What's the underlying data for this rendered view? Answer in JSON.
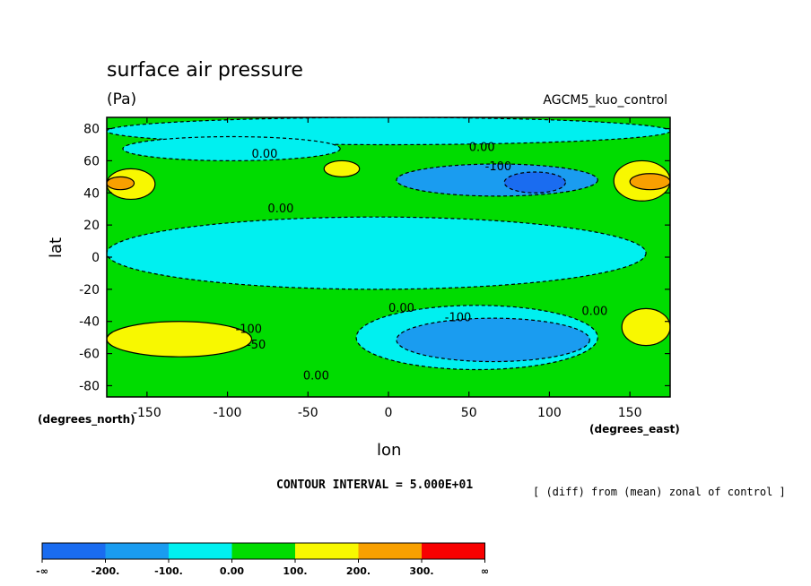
{
  "title": "surface air pressure",
  "units": "(Pa)",
  "run_name": "AGCM5_kuo_control",
  "lat_unit": "(degrees_north)",
  "lon_unit": "(degrees_east)",
  "xlabel": "lon",
  "ylabel": "lat",
  "contour_interval": "CONTOUR INTERVAL = 5.000E+01",
  "note": "[ (diff) from (mean) zonal of control ]",
  "colorbar": {
    "colors": [
      "#1a6cf0",
      "#1a9cf0",
      "#00f0f0",
      "#00dc00",
      "#f8f800",
      "#f8a000",
      "#f80000"
    ],
    "labels": [
      "-∞",
      "-200.",
      "-100.",
      "0.00",
      "100.",
      "200.",
      "300.",
      "∞"
    ]
  },
  "chart_data": {
    "type": "heatmap",
    "title": "surface air pressure",
    "xlabel": "lon",
    "ylabel": "lat",
    "xlim": [
      -175,
      175
    ],
    "ylim": [
      -87,
      87
    ],
    "xticks": [
      -150,
      -100,
      -50,
      0,
      50,
      100,
      150
    ],
    "yticks": [
      -80,
      -60,
      -40,
      -20,
      0,
      20,
      40,
      60,
      80
    ],
    "contour_levels": [
      -200,
      -150,
      -100,
      -50,
      0,
      50,
      100,
      150,
      200,
      250
    ],
    "contour_labels": [
      {
        "text": "0.00",
        "lon": -85,
        "lat": 62
      },
      {
        "text": "0.00",
        "lon": -75,
        "lat": 28
      },
      {
        "text": "0.00",
        "lon": 50,
        "lat": 66
      },
      {
        "text": "-100",
        "lon": 60,
        "lat": 54
      },
      {
        "text": "0.00",
        "lon": 0,
        "lat": -34
      },
      {
        "text": "-100",
        "lon": 35,
        "lat": -40
      },
      {
        "text": "0.00",
        "lon": 120,
        "lat": -36
      },
      {
        "text": "-100",
        "lon": -95,
        "lat": -47
      },
      {
        "text": "-50",
        "lon": -88,
        "lat": -57
      },
      {
        "text": "0.00",
        "lon": -53,
        "lat": -76
      }
    ],
    "regions": [
      {
        "level": 0,
        "name": "positive background",
        "lon": [
          -175,
          175
        ],
        "lat": [
          -87,
          87
        ]
      },
      {
        "level": -1,
        "name": "north polar negative",
        "lon": [
          -175,
          175
        ],
        "lat": [
          70,
          87
        ]
      },
      {
        "level": -1,
        "name": "north pacific negative",
        "lon": [
          -165,
          -30
        ],
        "lat": [
          60,
          75
        ]
      },
      {
        "level": -1,
        "name": "tropical negative band",
        "lon": [
          -175,
          160
        ],
        "lat": [
          -20,
          25
        ]
      },
      {
        "level": -1,
        "name": "south ocean negative",
        "lon": [
          -20,
          130
        ],
        "lat": [
          -70,
          -30
        ]
      },
      {
        "level": -2,
        "name": "central asia low",
        "lon": [
          5,
          130
        ],
        "lat": [
          38,
          58
        ]
      },
      {
        "level": -3,
        "name": "central asia core",
        "lon": [
          72,
          110
        ],
        "lat": [
          40,
          53
        ]
      },
      {
        "level": -2,
        "name": "southern low",
        "lon": [
          5,
          125
        ],
        "lat": [
          -65,
          -38
        ]
      },
      {
        "level": 1,
        "name": "north high west",
        "lon": [
          -175,
          -145
        ],
        "lat": [
          36,
          55
        ]
      },
      {
        "level": 2,
        "name": "north high west core",
        "lon": [
          -175,
          -158
        ],
        "lat": [
          42,
          50
        ]
      },
      {
        "level": 1,
        "name": "north high east",
        "lon": [
          140,
          175
        ],
        "lat": [
          35,
          60
        ]
      },
      {
        "level": 2,
        "name": "north high east core",
        "lon": [
          150,
          175
        ],
        "lat": [
          42,
          52
        ]
      },
      {
        "level": 1,
        "name": "mid high",
        "lon": [
          -40,
          -18
        ],
        "lat": [
          50,
          60
        ]
      },
      {
        "level": 1,
        "name": "south high west",
        "lon": [
          -175,
          -85
        ],
        "lat": [
          -62,
          -40
        ]
      },
      {
        "level": 1,
        "name": "south high east",
        "lon": [
          145,
          175
        ],
        "lat": [
          -55,
          -32
        ]
      }
    ]
  }
}
